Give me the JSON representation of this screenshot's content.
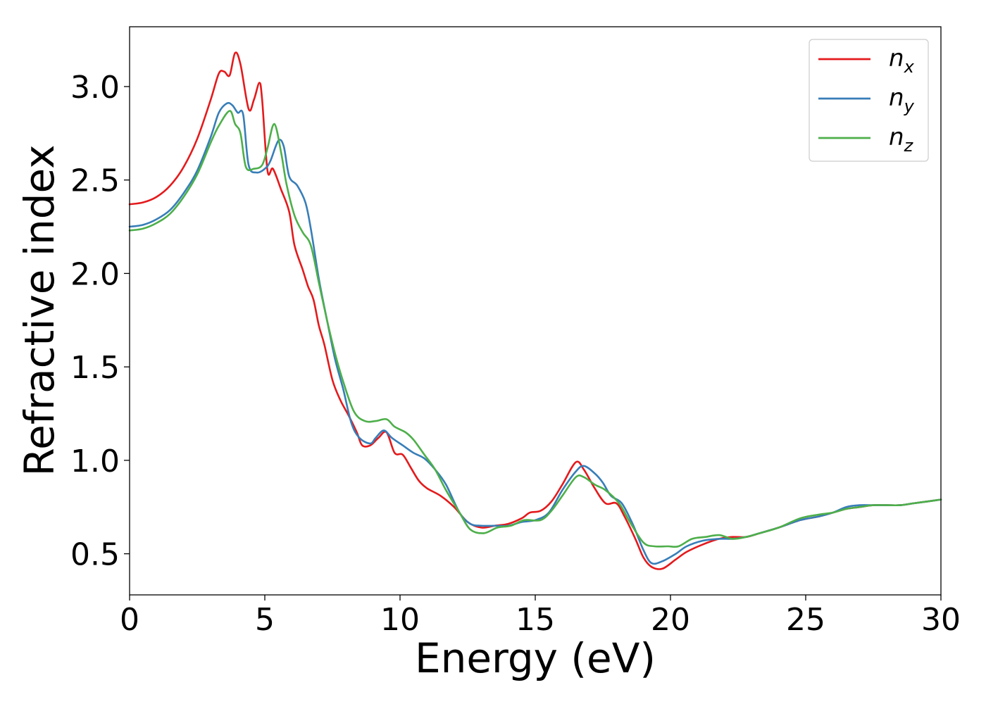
{
  "chart_data": {
    "type": "line",
    "title": "",
    "xlabel": "Energy (eV)",
    "ylabel": "Refractive index",
    "xlim": [
      0,
      30
    ],
    "ylim": [
      0.28,
      3.32
    ],
    "xticks": [
      0,
      5,
      10,
      15,
      20,
      25,
      30
    ],
    "xtick_labels": [
      "0",
      "5",
      "10",
      "15",
      "20",
      "25",
      "30"
    ],
    "yticks": [
      0.5,
      1.0,
      1.5,
      2.0,
      2.5,
      3.0
    ],
    "ytick_labels": [
      "0.5",
      "1.0",
      "1.5",
      "2.0",
      "2.5",
      "3.0"
    ],
    "grid": false,
    "legend_position": "top-right",
    "series": [
      {
        "name": "n",
        "subscript": "x",
        "color": "#e41a1c",
        "points": [
          [
            0,
            2.37
          ],
          [
            0.5,
            2.38
          ],
          [
            1.0,
            2.41
          ],
          [
            1.5,
            2.47
          ],
          [
            2.0,
            2.57
          ],
          [
            2.5,
            2.72
          ],
          [
            3.0,
            2.93
          ],
          [
            3.3,
            3.07
          ],
          [
            3.5,
            3.08
          ],
          [
            3.7,
            3.06
          ],
          [
            3.9,
            3.18
          ],
          [
            4.1,
            3.12
          ],
          [
            4.4,
            2.88
          ],
          [
            4.6,
            2.93
          ],
          [
            4.8,
            3.02
          ],
          [
            4.9,
            2.93
          ],
          [
            5.1,
            2.55
          ],
          [
            5.3,
            2.56
          ],
          [
            5.6,
            2.45
          ],
          [
            5.9,
            2.33
          ],
          [
            6.1,
            2.15
          ],
          [
            6.4,
            2.02
          ],
          [
            6.6,
            1.93
          ],
          [
            6.8,
            1.86
          ],
          [
            7.0,
            1.72
          ],
          [
            7.2,
            1.62
          ],
          [
            7.5,
            1.43
          ],
          [
            7.8,
            1.32
          ],
          [
            8.1,
            1.24
          ],
          [
            8.4,
            1.15
          ],
          [
            8.6,
            1.08
          ],
          [
            8.9,
            1.08
          ],
          [
            9.2,
            1.12
          ],
          [
            9.5,
            1.15
          ],
          [
            9.8,
            1.04
          ],
          [
            10.1,
            1.03
          ],
          [
            10.4,
            0.96
          ],
          [
            10.7,
            0.89
          ],
          [
            11.0,
            0.85
          ],
          [
            11.5,
            0.81
          ],
          [
            12.0,
            0.75
          ],
          [
            12.5,
            0.67
          ],
          [
            13.0,
            0.64
          ],
          [
            13.5,
            0.65
          ],
          [
            14.0,
            0.66
          ],
          [
            14.5,
            0.69
          ],
          [
            14.8,
            0.72
          ],
          [
            15.2,
            0.73
          ],
          [
            15.6,
            0.78
          ],
          [
            16.0,
            0.87
          ],
          [
            16.5,
            0.99
          ],
          [
            16.8,
            0.95
          ],
          [
            17.2,
            0.85
          ],
          [
            17.6,
            0.77
          ],
          [
            18.0,
            0.77
          ],
          [
            18.3,
            0.7
          ],
          [
            18.7,
            0.58
          ],
          [
            19.0,
            0.48
          ],
          [
            19.3,
            0.43
          ],
          [
            19.7,
            0.42
          ],
          [
            20.2,
            0.47
          ],
          [
            20.6,
            0.51
          ],
          [
            21.2,
            0.55
          ],
          [
            21.8,
            0.58
          ],
          [
            22.3,
            0.59
          ],
          [
            22.8,
            0.59
          ],
          [
            23.3,
            0.61
          ],
          [
            24.0,
            0.64
          ],
          [
            24.8,
            0.68
          ],
          [
            25.5,
            0.7
          ],
          [
            26.0,
            0.72
          ],
          [
            26.5,
            0.74
          ],
          [
            27.0,
            0.75
          ],
          [
            27.5,
            0.76
          ],
          [
            28.0,
            0.76
          ],
          [
            28.5,
            0.76
          ],
          [
            29.0,
            0.77
          ],
          [
            29.5,
            0.78
          ],
          [
            30.0,
            0.79
          ]
        ]
      },
      {
        "name": "n",
        "subscript": "y",
        "color": "#377eb8",
        "points": [
          [
            0,
            2.25
          ],
          [
            0.5,
            2.26
          ],
          [
            1.0,
            2.29
          ],
          [
            1.5,
            2.34
          ],
          [
            2.0,
            2.43
          ],
          [
            2.5,
            2.55
          ],
          [
            3.0,
            2.73
          ],
          [
            3.3,
            2.86
          ],
          [
            3.6,
            2.91
          ],
          [
            3.8,
            2.9
          ],
          [
            4.0,
            2.86
          ],
          [
            4.2,
            2.85
          ],
          [
            4.4,
            2.58
          ],
          [
            4.7,
            2.54
          ],
          [
            5.0,
            2.56
          ],
          [
            5.2,
            2.6
          ],
          [
            5.5,
            2.71
          ],
          [
            5.7,
            2.68
          ],
          [
            5.9,
            2.52
          ],
          [
            6.2,
            2.47
          ],
          [
            6.5,
            2.38
          ],
          [
            6.7,
            2.24
          ],
          [
            7.0,
            1.97
          ],
          [
            7.3,
            1.75
          ],
          [
            7.6,
            1.54
          ],
          [
            7.9,
            1.38
          ],
          [
            8.2,
            1.2
          ],
          [
            8.5,
            1.12
          ],
          [
            8.9,
            1.09
          ],
          [
            9.1,
            1.12
          ],
          [
            9.4,
            1.16
          ],
          [
            9.7,
            1.12
          ],
          [
            10.1,
            1.08
          ],
          [
            10.5,
            1.04
          ],
          [
            10.9,
            1.01
          ],
          [
            11.3,
            0.95
          ],
          [
            11.7,
            0.87
          ],
          [
            12.2,
            0.72
          ],
          [
            12.6,
            0.66
          ],
          [
            13.0,
            0.65
          ],
          [
            13.5,
            0.65
          ],
          [
            14.0,
            0.65
          ],
          [
            14.5,
            0.67
          ],
          [
            15.0,
            0.68
          ],
          [
            15.5,
            0.72
          ],
          [
            16.0,
            0.84
          ],
          [
            16.5,
            0.94
          ],
          [
            16.8,
            0.97
          ],
          [
            17.2,
            0.93
          ],
          [
            17.5,
            0.88
          ],
          [
            17.8,
            0.81
          ],
          [
            18.2,
            0.77
          ],
          [
            18.6,
            0.66
          ],
          [
            19.0,
            0.52
          ],
          [
            19.3,
            0.45
          ],
          [
            19.7,
            0.46
          ],
          [
            20.2,
            0.5
          ],
          [
            20.6,
            0.54
          ],
          [
            21.2,
            0.57
          ],
          [
            21.8,
            0.58
          ],
          [
            22.3,
            0.58
          ],
          [
            22.8,
            0.59
          ],
          [
            23.3,
            0.61
          ],
          [
            24.0,
            0.64
          ],
          [
            24.8,
            0.68
          ],
          [
            25.5,
            0.7
          ],
          [
            26.0,
            0.72
          ],
          [
            26.5,
            0.75
          ],
          [
            27.0,
            0.76
          ],
          [
            27.5,
            0.76
          ],
          [
            28.0,
            0.76
          ],
          [
            28.5,
            0.76
          ],
          [
            29.0,
            0.77
          ],
          [
            29.5,
            0.78
          ],
          [
            30.0,
            0.79
          ]
        ]
      },
      {
        "name": "n",
        "subscript": "z",
        "color": "#4daf4a",
        "points": [
          [
            0,
            2.23
          ],
          [
            0.5,
            2.24
          ],
          [
            1.0,
            2.27
          ],
          [
            1.5,
            2.32
          ],
          [
            2.0,
            2.41
          ],
          [
            2.5,
            2.53
          ],
          [
            3.0,
            2.7
          ],
          [
            3.3,
            2.79
          ],
          [
            3.7,
            2.87
          ],
          [
            3.9,
            2.8
          ],
          [
            4.1,
            2.75
          ],
          [
            4.3,
            2.57
          ],
          [
            4.6,
            2.56
          ],
          [
            4.9,
            2.58
          ],
          [
            5.1,
            2.67
          ],
          [
            5.35,
            2.8
          ],
          [
            5.6,
            2.65
          ],
          [
            5.8,
            2.48
          ],
          [
            6.1,
            2.31
          ],
          [
            6.4,
            2.22
          ],
          [
            6.7,
            2.15
          ],
          [
            7.0,
            1.95
          ],
          [
            7.3,
            1.75
          ],
          [
            7.6,
            1.57
          ],
          [
            7.9,
            1.42
          ],
          [
            8.3,
            1.26
          ],
          [
            8.7,
            1.21
          ],
          [
            9.1,
            1.21
          ],
          [
            9.5,
            1.22
          ],
          [
            9.8,
            1.18
          ],
          [
            10.2,
            1.15
          ],
          [
            10.5,
            1.11
          ],
          [
            10.9,
            1.03
          ],
          [
            11.3,
            0.95
          ],
          [
            11.7,
            0.84
          ],
          [
            12.2,
            0.72
          ],
          [
            12.6,
            0.63
          ],
          [
            13.1,
            0.61
          ],
          [
            13.6,
            0.64
          ],
          [
            14.1,
            0.65
          ],
          [
            14.6,
            0.68
          ],
          [
            15.2,
            0.68
          ],
          [
            15.6,
            0.73
          ],
          [
            16.0,
            0.81
          ],
          [
            16.5,
            0.91
          ],
          [
            16.8,
            0.91
          ],
          [
            17.2,
            0.87
          ],
          [
            17.6,
            0.84
          ],
          [
            18.1,
            0.77
          ],
          [
            18.5,
            0.67
          ],
          [
            19.0,
            0.56
          ],
          [
            19.4,
            0.54
          ],
          [
            19.9,
            0.54
          ],
          [
            20.3,
            0.54
          ],
          [
            20.8,
            0.58
          ],
          [
            21.3,
            0.59
          ],
          [
            21.8,
            0.6
          ],
          [
            22.3,
            0.58
          ],
          [
            22.8,
            0.59
          ],
          [
            23.3,
            0.61
          ],
          [
            24.0,
            0.64
          ],
          [
            24.8,
            0.69
          ],
          [
            25.5,
            0.71
          ],
          [
            26.0,
            0.72
          ],
          [
            26.5,
            0.74
          ],
          [
            27.0,
            0.75
          ],
          [
            27.5,
            0.76
          ],
          [
            28.0,
            0.76
          ],
          [
            28.5,
            0.76
          ],
          [
            29.0,
            0.77
          ],
          [
            29.5,
            0.78
          ],
          [
            30.0,
            0.79
          ]
        ]
      }
    ]
  }
}
